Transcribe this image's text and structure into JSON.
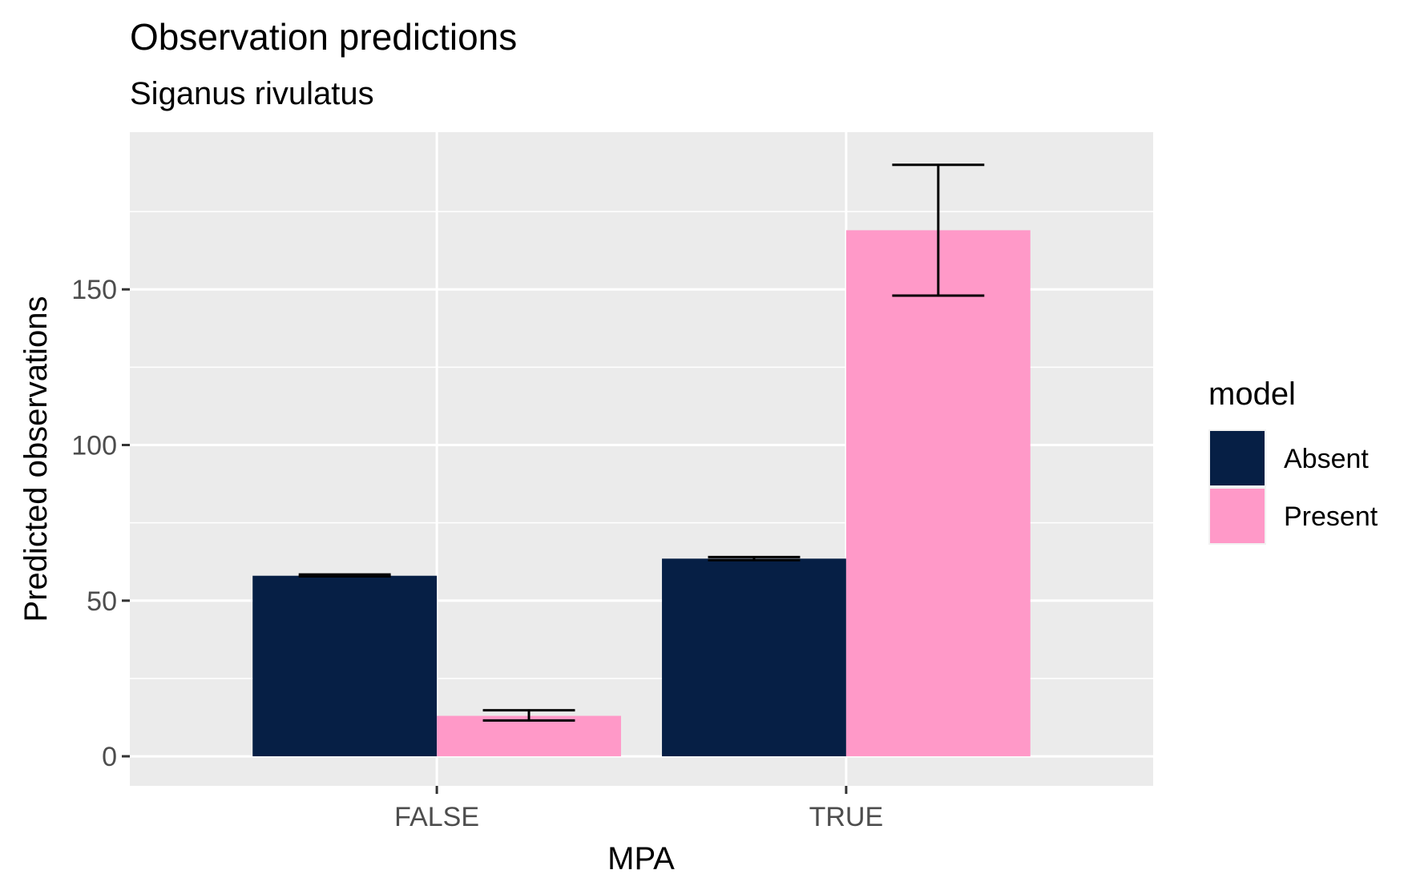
{
  "chart_data": {
    "type": "bar",
    "title": "Observation predictions",
    "subtitle": "Siganus rivulatus",
    "xlabel": "MPA",
    "ylabel": "Predicted observations",
    "categories": [
      "FALSE",
      "TRUE"
    ],
    "ylim": [
      -9.5,
      200.5
    ],
    "yticks": [
      0,
      50,
      100,
      150
    ],
    "grid": true,
    "legend": {
      "title": "model",
      "position": "right"
    },
    "series": [
      {
        "name": "Absent",
        "color": "#061f45",
        "values": [
          58,
          63.5
        ],
        "error_low": [
          57.8,
          63.0
        ],
        "error_high": [
          58.4,
          64.0
        ]
      },
      {
        "name": "Present",
        "color": "#ff99c8",
        "values": [
          13,
          169
        ],
        "error_low": [
          11.5,
          148
        ],
        "error_high": [
          14.8,
          190
        ]
      }
    ]
  }
}
